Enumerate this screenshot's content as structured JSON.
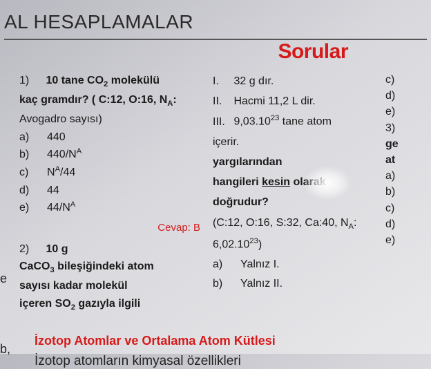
{
  "header": "AL HESAPLAMALAR",
  "sorular_label": "Sorular",
  "q1": {
    "num": "1)",
    "line1a": "10 tane CO",
    "line1b": " molekülü",
    "line2": "kaç gramdır? ( C:12, O:16, N",
    "line2b": ":",
    "line3": "Avogadro sayısı)",
    "opts": {
      "a_label": "a)",
      "a_val": "440",
      "b_label": "b)",
      "b_val": "440/N",
      "c_label": "c)",
      "c_val": "N",
      "c_val2": "/44",
      "d_label": "d)",
      "d_val": "44",
      "e_label": "e)",
      "e_val": "44/N"
    },
    "cevap": "Cevap: B"
  },
  "q2": {
    "num": "2)",
    "line1": "10 g",
    "line2a": "CaCO",
    "line2b": " bileşiğindeki atom",
    "line3": "sayısı kadar molekül",
    "line4a": "içeren SO",
    "line4b": " gazıyla ilgili"
  },
  "mid": {
    "r1_label": "I.",
    "r1_text": "32 g dır.",
    "r2_label": "II.",
    "r2_text": "Hacmi 11,2 L dir.",
    "r3_label": "III.",
    "r3_text_a": "9,03.10",
    "r3_text_b": " tane atom",
    "r3_line2": "içerir.",
    "bold1": "yargılarından",
    "bold2a": "hangileri ",
    "bold2b": "kesin",
    "bold2c": " olarak",
    "bold3": "doğrudur?",
    "paren_a": "(C:12, O:16, S:32, Ca:40, N",
    "paren_b": ":",
    "paren2": "6,02.10",
    "paren2b": ")",
    "a_label": "a)",
    "a_text": "Yalnız I.",
    "b_label": "b)",
    "b_text": "Yalnız II."
  },
  "right": {
    "items": [
      "c)",
      "d)",
      "e)",
      "",
      "3)",
      "ge",
      "at",
      "a)",
      "b)",
      "c)",
      "d)",
      "e)"
    ]
  },
  "isotope": {
    "title": "İzotop Atomlar ve Ortalama Atom Kütlesi",
    "text": "İzotop atomların kimyasal özellikleri"
  },
  "edge_b": "b,",
  "edge_e": "e"
}
